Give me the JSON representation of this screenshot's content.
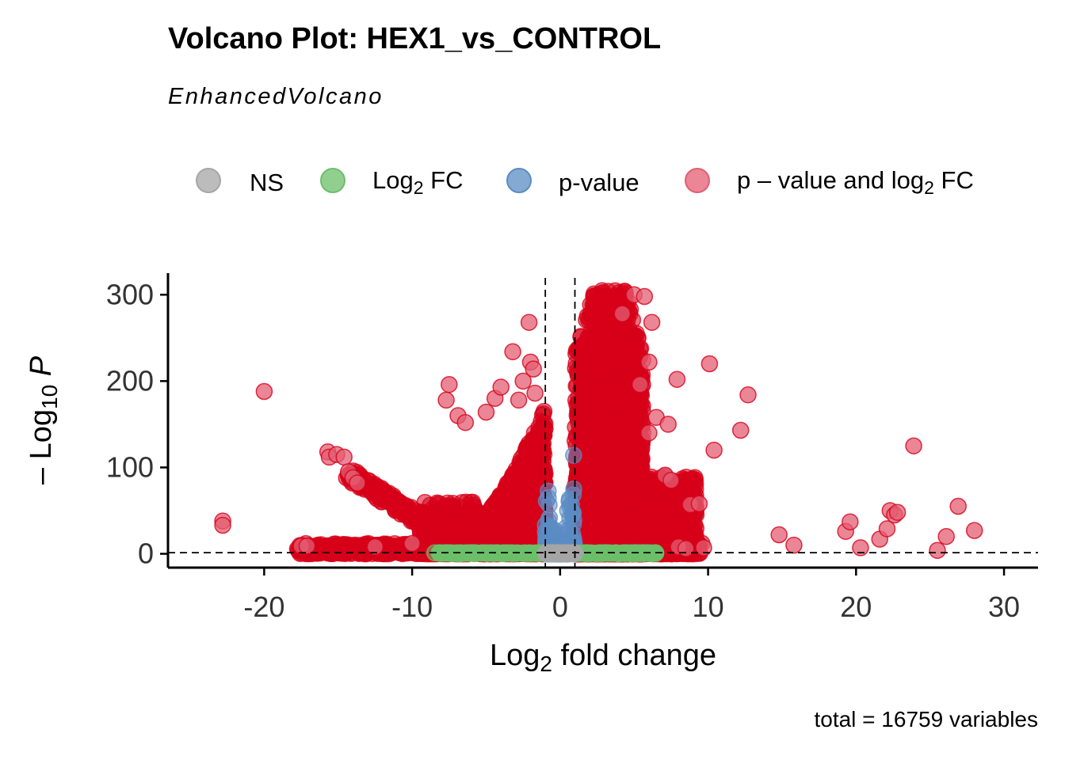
{
  "title": "Volcano Plot: HEX1_vs_CONTROL",
  "subtitle": "EnhancedVolcano",
  "caption": "total = 16759 variables",
  "legend": {
    "placement": "top",
    "items": [
      {
        "key": "ns",
        "parts": [
          {
            "t": "NS"
          }
        ],
        "color": "#a6a6a6"
      },
      {
        "key": "fc",
        "parts": [
          {
            "t": "Log"
          },
          {
            "t": "2",
            "sub": true
          },
          {
            "t": " FC"
          }
        ],
        "color": "#6cbf6a"
      },
      {
        "key": "p",
        "parts": [
          {
            "t": "p-value"
          }
        ],
        "color": "#5b8cc4"
      },
      {
        "key": "pfc",
        "parts": [
          {
            "t": "p – value and log"
          },
          {
            "t": "2",
            "sub": true
          },
          {
            "t": " FC"
          }
        ],
        "color": "#e35d72"
      }
    ]
  },
  "chart_data": {
    "type": "scatter",
    "title": "Volcano Plot: HEX1_vs_CONTROL",
    "subtitle": "EnhancedVolcano",
    "xlabel_parts": [
      {
        "t": "Log"
      },
      {
        "t": "2",
        "sub": true
      },
      {
        "t": " fold change"
      }
    ],
    "ylabel_parts": [
      {
        "t": "– Log"
      },
      {
        "t": "10",
        "sub": true
      },
      {
        "t": " "
      },
      {
        "t": "P",
        "italic": true
      }
    ],
    "xlim": [
      -26.5,
      32.3
    ],
    "ylim": [
      -16,
      325
    ],
    "x_ticks": [
      -20,
      -10,
      0,
      10,
      20,
      30
    ],
    "x_tick_labels": [
      "-20",
      "-10",
      "0",
      "10",
      "20",
      "30"
    ],
    "y_ticks": [
      0,
      100,
      200,
      300
    ],
    "y_tick_labels": [
      "0",
      "100",
      "200",
      "300"
    ],
    "grid": false,
    "fc_cutoff": 1,
    "p_cutoff_line_y": 1.3,
    "colors": {
      "ns": "#a6a6a6",
      "fc": "#6cbf6a",
      "p": "#5b8cc4",
      "pfc": "#e35d72",
      "pfc_dense": "#d7001a"
    },
    "outliers": [
      [
        -20.0,
        188
      ],
      [
        -22.8,
        38
      ],
      [
        -22.8,
        33
      ],
      [
        -15.7,
        118
      ],
      [
        -15.6,
        112
      ],
      [
        -15.1,
        115
      ],
      [
        -14.6,
        112
      ],
      [
        -14.3,
        95
      ],
      [
        -14.0,
        88
      ],
      [
        -13.7,
        82
      ],
      [
        -7.5,
        196
      ],
      [
        -7.7,
        178
      ],
      [
        -6.9,
        160
      ],
      [
        -6.4,
        152
      ],
      [
        -5.0,
        164
      ],
      [
        -4.4,
        180
      ],
      [
        -4.0,
        193
      ],
      [
        -3.2,
        234
      ],
      [
        -2.1,
        268
      ],
      [
        -2.0,
        222
      ],
      [
        -1.8,
        214
      ],
      [
        -2.5,
        200
      ],
      [
        -1.7,
        186
      ],
      [
        -2.8,
        178
      ],
      [
        -10.0,
        12
      ],
      [
        -12.5,
        8
      ],
      [
        -17.5,
        9
      ],
      [
        -17.1,
        9
      ],
      [
        5.0,
        300
      ],
      [
        5.7,
        298
      ],
      [
        6.2,
        268
      ],
      [
        4.2,
        278
      ],
      [
        6.0,
        222
      ],
      [
        7.9,
        202
      ],
      [
        10.1,
        220
      ],
      [
        12.7,
        184
      ],
      [
        12.2,
        143
      ],
      [
        10.4,
        120
      ],
      [
        5.4,
        196
      ],
      [
        6.5,
        158
      ],
      [
        7.3,
        150
      ],
      [
        6.0,
        140
      ],
      [
        7.1,
        91
      ],
      [
        7.5,
        85
      ],
      [
        8.8,
        57
      ],
      [
        9.4,
        58
      ],
      [
        14.8,
        22
      ],
      [
        15.8,
        10
      ],
      [
        19.3,
        26
      ],
      [
        19.6,
        37
      ],
      [
        20.3,
        7
      ],
      [
        21.6,
        17
      ],
      [
        22.1,
        29
      ],
      [
        22.3,
        50
      ],
      [
        22.6,
        45
      ],
      [
        22.8,
        48
      ],
      [
        23.9,
        125
      ],
      [
        25.5,
        4
      ],
      [
        26.1,
        20
      ],
      [
        26.9,
        55
      ],
      [
        28.0,
        27
      ],
      [
        9.7,
        7
      ],
      [
        8.0,
        8
      ],
      [
        8.5,
        6
      ]
    ],
    "clusters": [
      {
        "cat": "pfc",
        "count": 2400,
        "x_range": [
          1.0,
          5.6
        ],
        "y_max": 305,
        "decay": 2.6,
        "seed": 11
      },
      {
        "cat": "pfc",
        "count": 700,
        "x_range": [
          5.6,
          9.2
        ],
        "y_max": 90,
        "decay": 1.8,
        "seed": 12
      },
      {
        "cat": "pfc",
        "count": 1700,
        "x_range": [
          -5.5,
          -1.0
        ],
        "y_max": 170,
        "decay": 1.6,
        "seed": 13
      },
      {
        "cat": "pfc",
        "count": 420,
        "x_range": [
          -9.5,
          -5.5
        ],
        "y_max": 60,
        "decay": 2.0,
        "seed": 14
      },
      {
        "cat": "pfc",
        "count": 360,
        "x_range": [
          -17.8,
          -8.0
        ],
        "y_max": 12,
        "decay": 1.2,
        "seed": 15
      },
      {
        "cat": "pfc",
        "count": 300,
        "x_range": [
          1.5,
          9.6
        ],
        "y_max": 14,
        "decay": 1.0,
        "seed": 16
      },
      {
        "cat": "p",
        "count": 220,
        "x_range": [
          -1.0,
          1.0
        ],
        "y_max": 140,
        "decay": 3.4,
        "seed": 21
      },
      {
        "cat": "fc",
        "count": 140,
        "x_range": [
          -8.5,
          -1.0
        ],
        "y_max": 1.3,
        "decay": 0.5,
        "seed": 31
      },
      {
        "cat": "fc",
        "count": 140,
        "x_range": [
          1.0,
          6.5
        ],
        "y_max": 1.3,
        "decay": 0.5,
        "seed": 32
      },
      {
        "cat": "ns",
        "count": 260,
        "x_range": [
          -1.0,
          1.0
        ],
        "y_max": 1.3,
        "decay": 0.5,
        "seed": 41
      }
    ],
    "diagonal_band": {
      "cat": "pfc",
      "x_start": -14.2,
      "y_start": 92,
      "x_end": -8.5,
      "y_end": 28,
      "count": 260,
      "seed": 51
    }
  }
}
